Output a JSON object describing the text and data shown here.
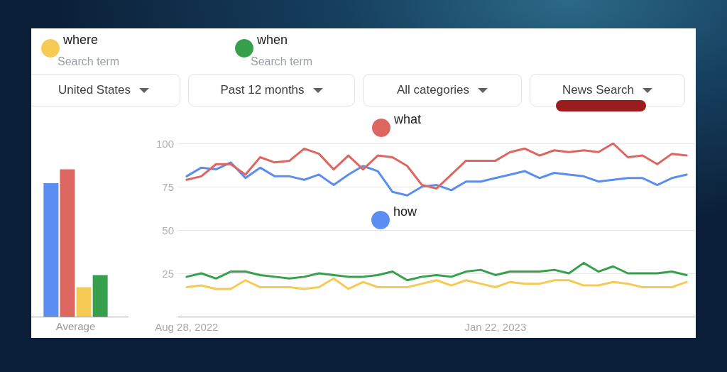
{
  "chart_data": [
    {
      "type": "bar",
      "categories": [
        "Average"
      ],
      "series": [
        {
          "color": "#5b8ef0",
          "values": [
            77
          ]
        },
        {
          "color": "#de6660",
          "values": [
            85
          ]
        },
        {
          "color": "#f5cb56",
          "values": [
            17
          ]
        },
        {
          "color": "#36a04c",
          "values": [
            24
          ]
        }
      ],
      "ylim": [
        0,
        100
      ],
      "tick_labels": "x"
    },
    {
      "type": "line",
      "x": [
        "2022-08-28",
        "2022-09-04",
        "2022-09-11",
        "2022-09-18",
        "2022-09-25",
        "2022-10-02",
        "2022-10-09",
        "2022-10-16",
        "2022-10-23",
        "2022-10-30",
        "2022-11-06",
        "2022-11-13",
        "2022-11-20",
        "2022-11-27",
        "2022-12-04",
        "2022-12-11",
        "2022-12-18",
        "2022-12-25",
        "2023-01-01",
        "2023-01-08",
        "2023-01-15",
        "2023-01-22",
        "2023-01-29",
        "2023-02-05",
        "2023-02-12",
        "2023-02-19",
        "2023-02-26",
        "2023-03-05",
        "2023-03-12",
        "2023-03-19",
        "2023-03-26",
        "2023-04-02",
        "2023-04-09",
        "2023-04-16",
        "2023-04-23"
      ],
      "series": [
        {
          "name": "how",
          "color": "#5b8ef0",
          "values": [
            81,
            86,
            85,
            89,
            80,
            86,
            81,
            81,
            79,
            82,
            76,
            82,
            87,
            84,
            72,
            70,
            75,
            76,
            73,
            78,
            78,
            80,
            82,
            84,
            80,
            83,
            82,
            81,
            78,
            79,
            80,
            80,
            76,
            80,
            82
          ]
        },
        {
          "name": "what",
          "color": "#de6660",
          "values": [
            79,
            81,
            88,
            88,
            82,
            92,
            89,
            90,
            97,
            94,
            85,
            93,
            85,
            93,
            92,
            87,
            76,
            74,
            82,
            90,
            90,
            90,
            95,
            97,
            93,
            96,
            95,
            96,
            95,
            100,
            92,
            93,
            88,
            94,
            93
          ]
        },
        {
          "name": "where",
          "color": "#f5cb56",
          "values": [
            17,
            18,
            16,
            16,
            21,
            17,
            17,
            17,
            16,
            17,
            22,
            16,
            20,
            17,
            17,
            17,
            19,
            21,
            18,
            21,
            19,
            17,
            20,
            19,
            19,
            21,
            21,
            18,
            18,
            20,
            19,
            17,
            17,
            17,
            20
          ]
        },
        {
          "name": "when",
          "color": "#36a04c",
          "values": [
            23,
            25,
            22,
            26,
            26,
            24,
            23,
            22,
            23,
            25,
            24,
            23,
            23,
            24,
            26,
            21,
            23,
            24,
            23,
            26,
            27,
            24,
            26,
            26,
            26,
            27,
            25,
            31,
            26,
            29,
            25,
            25,
            25,
            26,
            24
          ]
        }
      ],
      "xlim": [
        "2022-08-24",
        "2023-04-27"
      ],
      "xticks": [
        {
          "value": "2022-08-28",
          "label": "Aug 28, 2022"
        },
        {
          "value": "2023-01-22",
          "label": "Jan 22, 2023"
        }
      ],
      "ylim": [
        0,
        100
      ],
      "yticks": [
        25,
        50,
        75,
        100
      ],
      "grid": "y",
      "legend": "top left",
      "marker": "none",
      "annotations": [
        "Search term",
        "Search term",
        "United States",
        "Past 12 months",
        "All categories",
        "News Search"
      ]
    }
  ]
}
